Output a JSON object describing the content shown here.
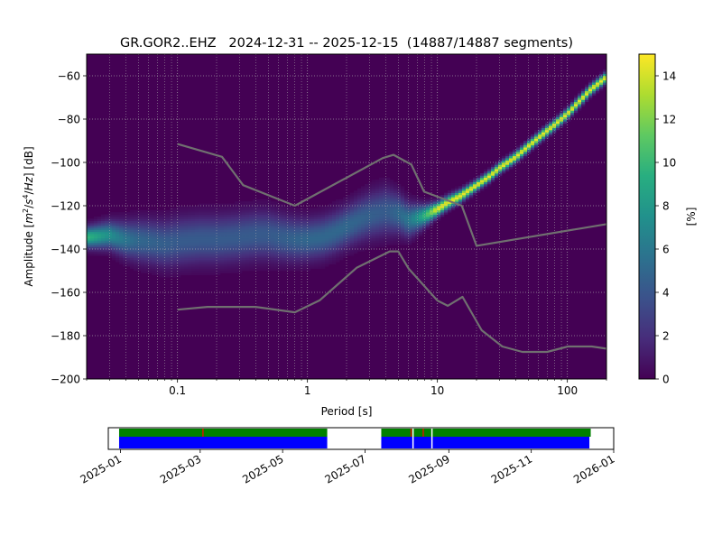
{
  "chart_data": [
    {
      "type": "heatmap",
      "title": "GR.GOR2..EHZ   2024-12-31 -- 2025-12-15  (14887/14887 segments)",
      "xlabel": "Period [s]",
      "ylabel_parts": [
        "Amplitude [",
        "m",
        "2",
        "/",
        "s",
        "4",
        "/",
        "Hz",
        "] [dB]"
      ],
      "x_scale": "log",
      "xlim": [
        0.02,
        200
      ],
      "ylim": [
        -200,
        -50
      ],
      "x_ticks": [
        {
          "value": 0.1,
          "label": "0.1"
        },
        {
          "value": 1,
          "label": "1"
        },
        {
          "value": 10,
          "label": "10"
        },
        {
          "value": 100,
          "label": "100"
        }
      ],
      "y_ticks": [
        {
          "value": -60,
          "label": "−60"
        },
        {
          "value": -80,
          "label": "−80"
        },
        {
          "value": -100,
          "label": "−100"
        },
        {
          "value": -120,
          "label": "−120"
        },
        {
          "value": -140,
          "label": "−140"
        },
        {
          "value": -160,
          "label": "−160"
        },
        {
          "value": -180,
          "label": "−180"
        },
        {
          "value": -200,
          "label": "−200"
        }
      ],
      "grid": true,
      "colormap": "viridis",
      "colorbar": {
        "label": "[%]",
        "range": [
          0,
          15
        ],
        "ticks": [
          {
            "value": 0,
            "label": "0"
          },
          {
            "value": 2,
            "label": "2"
          },
          {
            "value": 4,
            "label": "4"
          },
          {
            "value": 6,
            "label": "6"
          },
          {
            "value": 8,
            "label": "8"
          },
          {
            "value": 10,
            "label": "10"
          },
          {
            "value": 12,
            "label": "12"
          },
          {
            "value": 14,
            "label": "14"
          }
        ]
      },
      "mode_curve": [
        [
          0.02,
          -135
        ],
        [
          0.03,
          -134
        ],
        [
          0.04,
          -136
        ],
        [
          0.06,
          -137
        ],
        [
          0.08,
          -138
        ],
        [
          0.1,
          -137
        ],
        [
          0.15,
          -136
        ],
        [
          0.2,
          -136
        ],
        [
          0.3,
          -135
        ],
        [
          0.4,
          -134
        ],
        [
          0.5,
          -134
        ],
        [
          0.6,
          -135
        ],
        [
          0.8,
          -136
        ],
        [
          1.0,
          -136
        ],
        [
          1.3,
          -135
        ],
        [
          1.6,
          -133
        ],
        [
          2.0,
          -130
        ],
        [
          2.5,
          -127
        ],
        [
          3.0,
          -125
        ],
        [
          4.0,
          -123
        ],
        [
          5.0,
          -124
        ],
        [
          6.0,
          -127
        ],
        [
          7.0,
          -126
        ],
        [
          8.0,
          -125
        ],
        [
          10,
          -122
        ],
        [
          12,
          -119
        ],
        [
          15,
          -116
        ],
        [
          20,
          -111
        ],
        [
          25,
          -107
        ],
        [
          30,
          -103
        ],
        [
          40,
          -98
        ],
        [
          50,
          -93
        ],
        [
          60,
          -89
        ],
        [
          80,
          -83
        ],
        [
          100,
          -78
        ],
        [
          120,
          -73
        ],
        [
          150,
          -67
        ],
        [
          200,
          -61
        ]
      ],
      "spread_curve": [
        [
          0.02,
          3
        ],
        [
          0.03,
          4
        ],
        [
          0.05,
          6
        ],
        [
          0.1,
          7
        ],
        [
          0.2,
          7
        ],
        [
          0.5,
          7
        ],
        [
          1.0,
          6
        ],
        [
          2.0,
          6
        ],
        [
          4.0,
          7
        ],
        [
          6.0,
          5
        ],
        [
          8.0,
          3
        ],
        [
          10,
          2
        ],
        [
          20,
          1.5
        ],
        [
          200,
          1.5
        ]
      ],
      "noise_models": {
        "high": [
          [
            0.1,
            -91.5
          ],
          [
            0.22,
            -97.4
          ],
          [
            0.32,
            -110.5
          ],
          [
            0.8,
            -120
          ],
          [
            3.8,
            -98
          ],
          [
            4.6,
            -96.5
          ],
          [
            6.3,
            -101
          ],
          [
            7.9,
            -113.5
          ],
          [
            15.4,
            -120
          ],
          [
            20,
            -138.5
          ],
          [
            200,
            -128.5
          ]
        ],
        "low": [
          [
            0.1,
            -168
          ],
          [
            0.17,
            -166.7
          ],
          [
            0.4,
            -166.7
          ],
          [
            0.8,
            -169.2
          ],
          [
            1.24,
            -163.7
          ],
          [
            2.4,
            -148.6
          ],
          [
            4.3,
            -141.1
          ],
          [
            5.0,
            -141.1
          ],
          [
            6.0,
            -149
          ],
          [
            10,
            -163.8
          ],
          [
            12,
            -166.2
          ],
          [
            15.6,
            -162.1
          ],
          [
            21.9,
            -177.5
          ],
          [
            31.6,
            -185
          ],
          [
            45,
            -187.5
          ],
          [
            70,
            -187.5
          ],
          [
            101,
            -185
          ],
          [
            154,
            -185
          ],
          [
            200,
            -186
          ]
        ]
      }
    },
    {
      "type": "timeline",
      "xlim": [
        "2024-12-23",
        "2026-01-01"
      ],
      "x_ticks": [
        {
          "value": "2025-01-01",
          "label": "2025-01"
        },
        {
          "value": "2025-03-01",
          "label": "2025-03"
        },
        {
          "value": "2025-05-01",
          "label": "2025-05"
        },
        {
          "value": "2025-07-01",
          "label": "2025-07"
        },
        {
          "value": "2025-09-01",
          "label": "2025-09"
        },
        {
          "value": "2025-11-01",
          "label": "2025-11"
        },
        {
          "value": "2026-01-01",
          "label": "2026-01"
        }
      ],
      "available_data": [
        [
          "2024-12-31",
          "2025-06-03"
        ],
        [
          "2025-07-13",
          "2025-08-05"
        ],
        [
          "2025-08-06",
          "2025-08-19"
        ],
        [
          "2025-08-20",
          "2025-12-15"
        ]
      ],
      "used_segments": [
        [
          "2024-12-31",
          "2025-06-03"
        ],
        [
          "2025-07-13",
          "2025-08-05"
        ],
        [
          "2025-08-06",
          "2025-08-19"
        ],
        [
          "2025-08-20",
          "2025-12-14"
        ]
      ],
      "data_gaps": [
        "2025-03-03",
        "2025-08-04",
        "2025-08-13"
      ],
      "colors": {
        "available": "#008000",
        "used": "#0000ff",
        "gap": "#ff0000"
      }
    }
  ]
}
